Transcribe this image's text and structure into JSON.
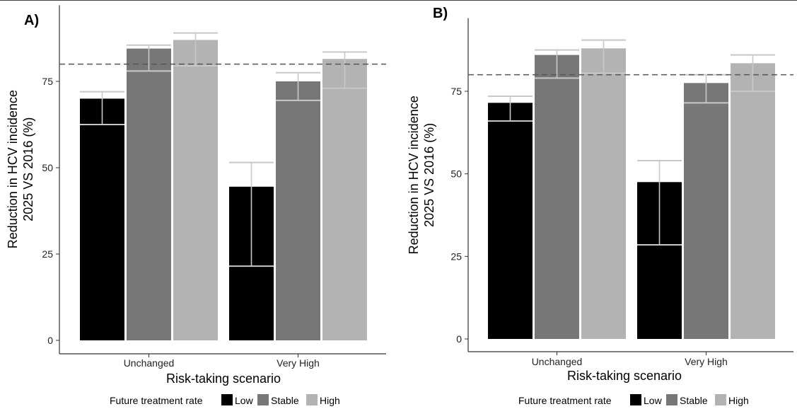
{
  "chart_data": [
    {
      "type": "bar",
      "panel_label": "A)",
      "categories": [
        "Unchanged",
        "Very High"
      ],
      "series": [
        {
          "name": "Low",
          "color": "#000000",
          "values": [
            70,
            44.5
          ],
          "ci_low": [
            62.5,
            21.5
          ],
          "ci_high": [
            72,
            51.5
          ]
        },
        {
          "name": "Stable",
          "color": "#777777",
          "values": [
            84.5,
            75
          ],
          "ci_low": [
            78,
            69.5
          ],
          "ci_high": [
            85.5,
            77.5
          ]
        },
        {
          "name": "High",
          "color": "#b3b3b3",
          "values": [
            87,
            81.5
          ],
          "ci_low": [
            79.5,
            73
          ],
          "ci_high": [
            89,
            83.5
          ]
        }
      ],
      "reference_line": 80,
      "ylim": [
        0,
        95
      ],
      "yticks": [
        "0",
        "25",
        "50",
        "75"
      ],
      "xlabel": "Risk-taking scenario",
      "ylabel_lines": [
        "Reduction in HCV incidence",
        "2025 VS 2016 (%)"
      ],
      "grid": false
    },
    {
      "type": "bar",
      "panel_label": "B)",
      "categories": [
        "Unchanged",
        "Very High"
      ],
      "series": [
        {
          "name": "Low",
          "color": "#000000",
          "values": [
            71.5,
            47.5
          ],
          "ci_low": [
            66,
            28.5
          ],
          "ci_high": [
            73.5,
            54
          ]
        },
        {
          "name": "Stable",
          "color": "#777777",
          "values": [
            86,
            77.5
          ],
          "ci_low": [
            79,
            71.5
          ],
          "ci_high": [
            87.5,
            80
          ]
        },
        {
          "name": "High",
          "color": "#b3b3b3",
          "values": [
            88,
            83.5
          ],
          "ci_low": [
            80.5,
            75
          ],
          "ci_high": [
            90.5,
            86
          ]
        }
      ],
      "reference_line": 80,
      "ylim": [
        0,
        95
      ],
      "yticks": [
        "0",
        "25",
        "50",
        "75"
      ],
      "xlabel": "Risk-taking scenario",
      "ylabel_lines": [
        "Reduction in HCV incidence",
        "2025 VS 2016 (%)"
      ],
      "grid": false
    }
  ],
  "legend": {
    "title": "Future treatment rate",
    "placement": "bottom",
    "items": [
      "Low",
      "Stable",
      "High"
    ]
  }
}
